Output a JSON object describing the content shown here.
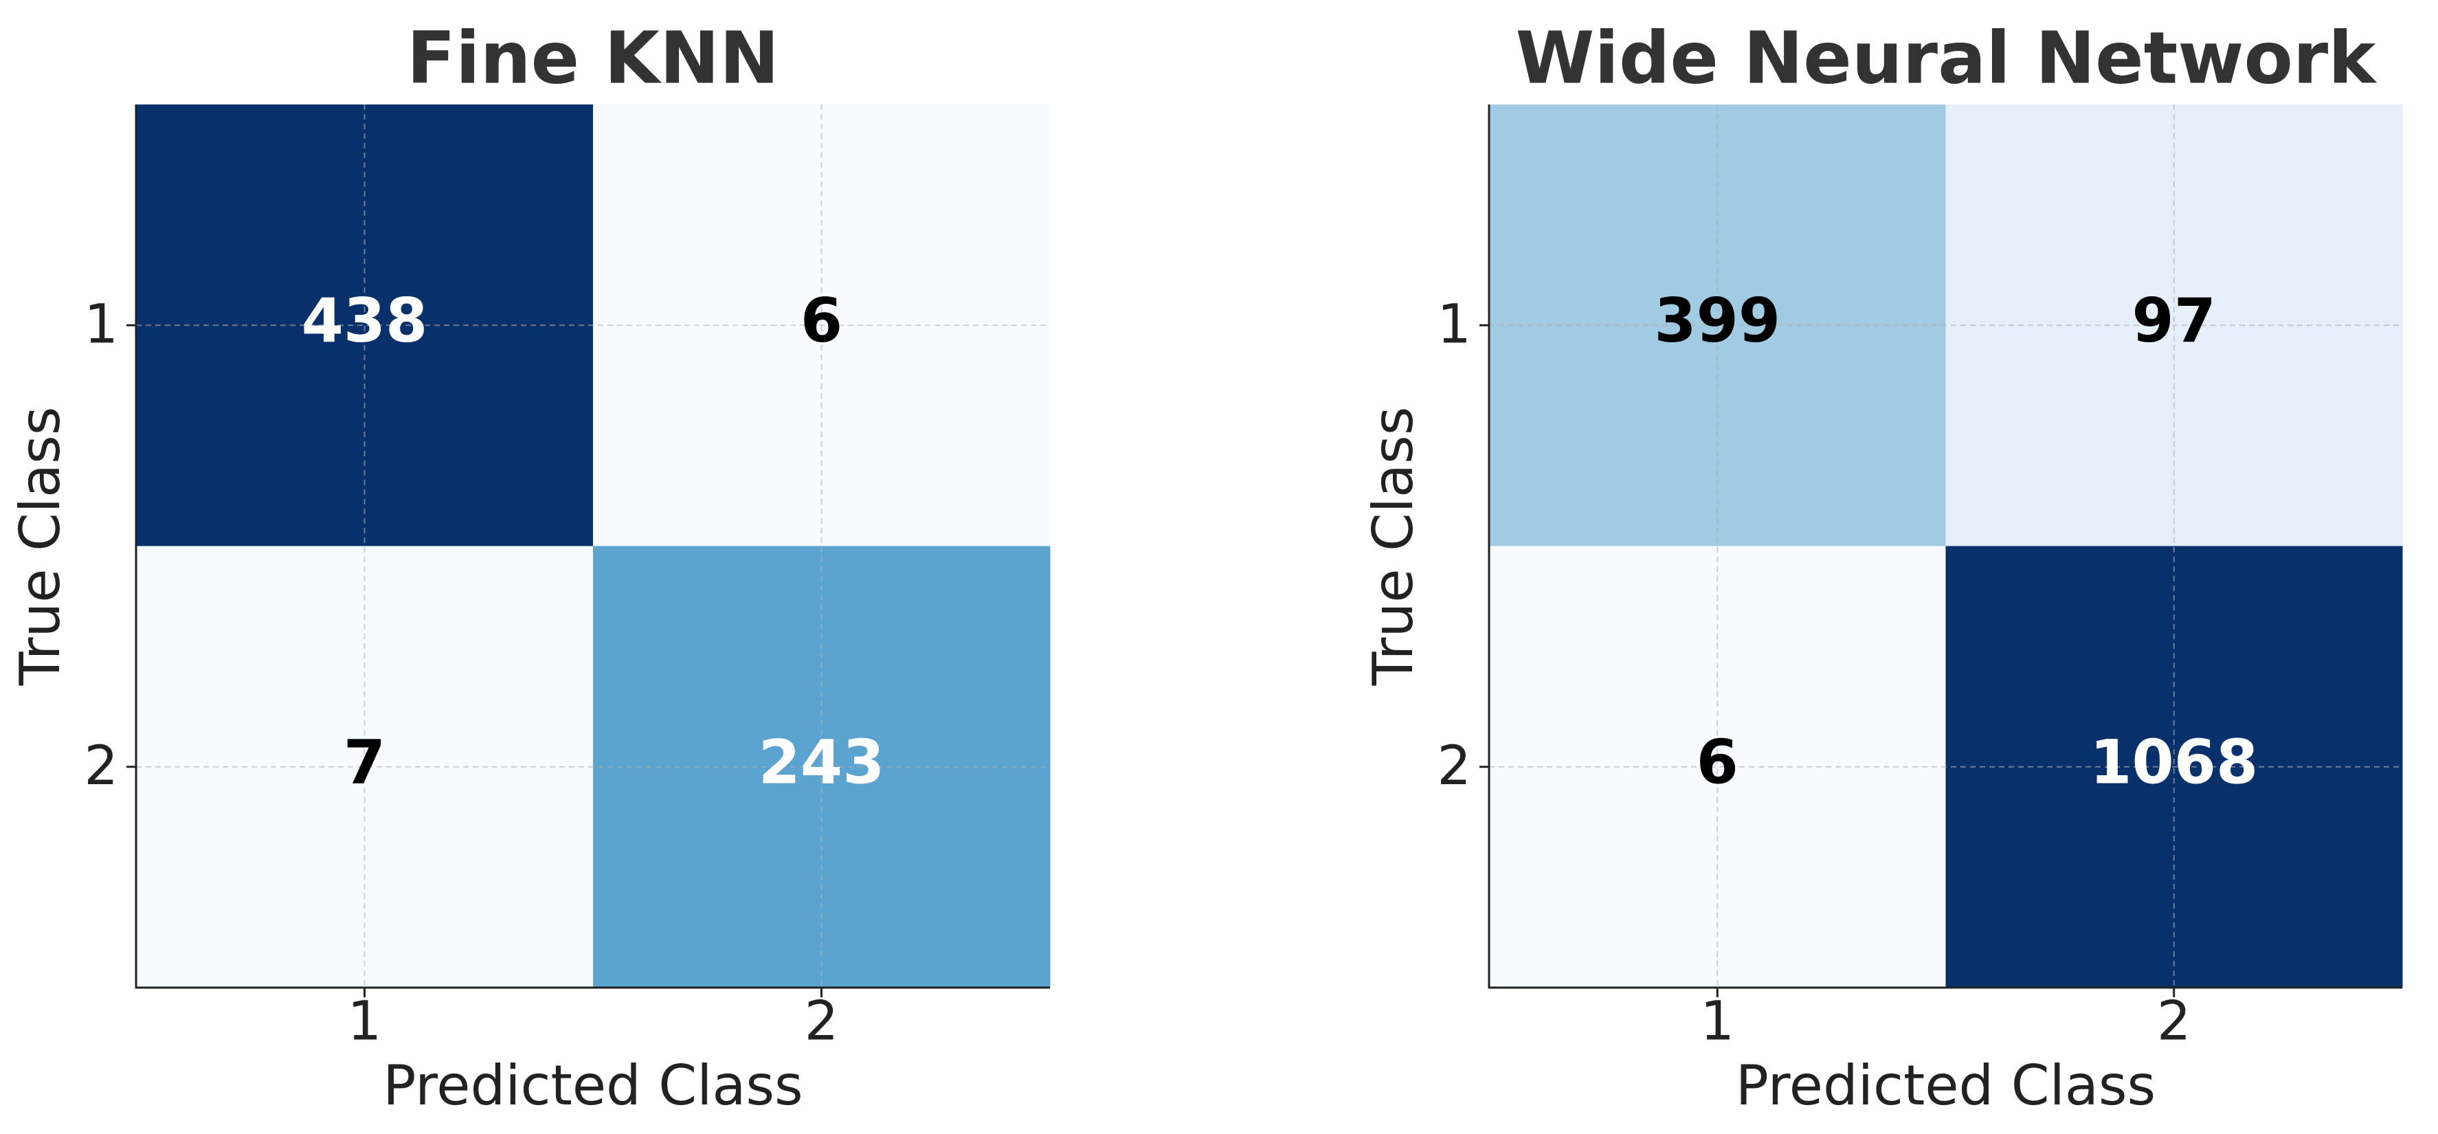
{
  "chart_data": [
    {
      "type": "heatmap",
      "title": "Fine KNN",
      "x_label": "Predicted Class",
      "y_label": "True Class",
      "x_categories": [
        "1",
        "2"
      ],
      "y_categories": [
        "1",
        "2"
      ],
      "values": [
        [
          438,
          6
        ],
        [
          7,
          243
        ]
      ],
      "colormap": "Blues",
      "grid": true
    },
    {
      "type": "heatmap",
      "title": "Wide Neural Network",
      "x_label": "Predicted Class",
      "y_label": "True Class",
      "x_categories": [
        "1",
        "2"
      ],
      "y_categories": [
        "1",
        "2"
      ],
      "values": [
        [
          399,
          97
        ],
        [
          6,
          1068
        ]
      ],
      "colormap": "Blues",
      "grid": true
    }
  ]
}
